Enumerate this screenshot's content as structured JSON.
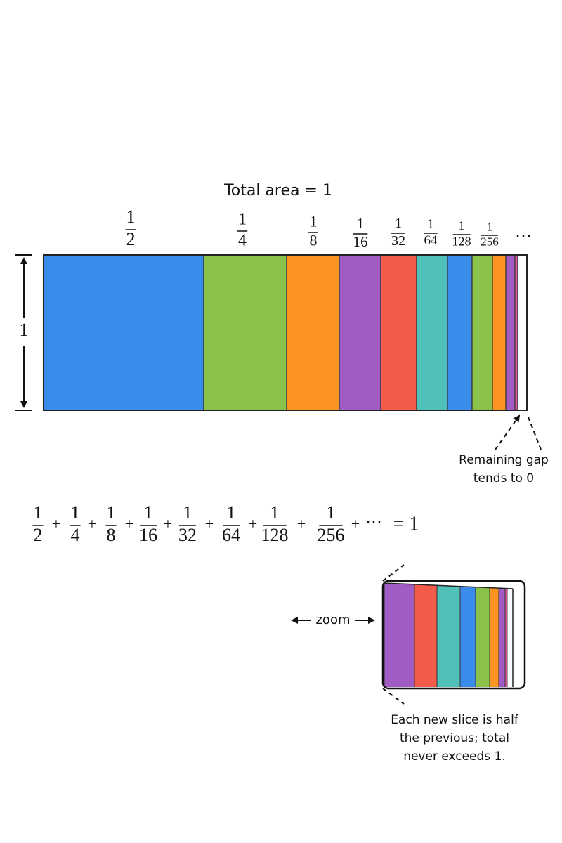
{
  "title": "Total area = 1",
  "slice_labels": [
    {
      "numerator": "1",
      "denominator": "2"
    },
    {
      "numerator": "1",
      "denominator": "4"
    },
    {
      "numerator": "1",
      "denominator": "8"
    },
    {
      "numerator": "1",
      "denominator": "16"
    },
    {
      "numerator": "1",
      "denominator": "32"
    },
    {
      "numerator": "1",
      "denominator": "64"
    },
    {
      "numerator": "1",
      "denominator": "128"
    },
    {
      "numerator": "1",
      "denominator": "256"
    }
  ],
  "slice_ellipsis": "⋯",
  "side_label": "1",
  "gap_note": [
    "Remaining gap",
    "tends to 0"
  ],
  "equation": {
    "terms": [
      {
        "numerator": "1",
        "denominator": "2"
      },
      {
        "numerator": "1",
        "denominator": "4"
      },
      {
        "numerator": "1",
        "denominator": "8"
      },
      {
        "numerator": "1",
        "denominator": "16"
      },
      {
        "numerator": "1",
        "denominator": "32"
      },
      {
        "numerator": "1",
        "denominator": "64"
      },
      {
        "numerator": "1",
        "denominator": "128"
      },
      {
        "numerator": "1",
        "denominator": "256"
      }
    ],
    "plus": "+",
    "tail": "⋯",
    "result": "= 1"
  },
  "zoom_label": "zoom",
  "caption": [
    "Each new slice is half",
    "the previous; total",
    "never exceeds 1."
  ]
}
